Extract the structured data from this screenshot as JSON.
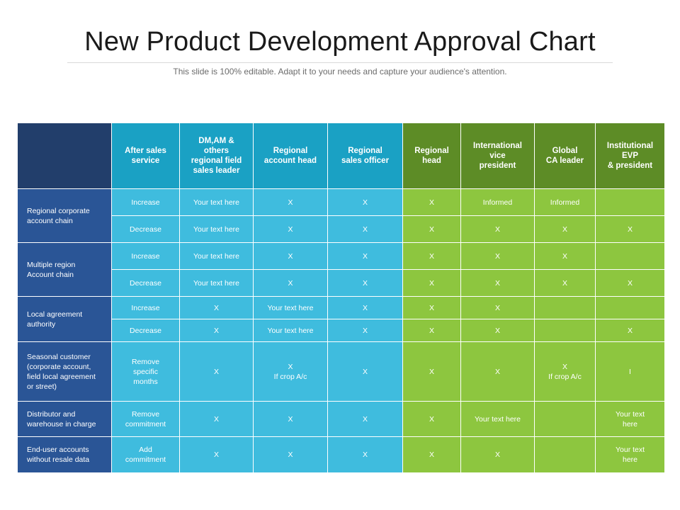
{
  "title": "New Product Development Approval Chart",
  "subtitle": "This slide is 100% editable. Adapt it to your needs and capture your audience's attention.",
  "headers": [
    "After sales\nservice",
    "DM,AM &\nothers\nregional field\nsales leader",
    "Regional\naccount head",
    "Regional\nsales officer",
    "Regional\nhead",
    "International\nvice\npresident",
    "Global\nCA leader",
    "Institutional\nEVP\n& president"
  ],
  "groups": [
    {
      "label": "Regional corporate\naccount chain",
      "rows": [
        [
          "Increase",
          "Your text here",
          "X",
          "X",
          "X",
          "Informed",
          "Informed",
          ""
        ],
        [
          "Decrease",
          "Your text here",
          "X",
          "X",
          "X",
          "X",
          "X",
          "X"
        ]
      ]
    },
    {
      "label": "Multiple region\nAccount chain",
      "rows": [
        [
          "Increase",
          "Your text here",
          "X",
          "X",
          "X",
          "X",
          "X",
          ""
        ],
        [
          "Decrease",
          "Your text here",
          "X",
          "X",
          "X",
          "X",
          "X",
          "X"
        ]
      ]
    },
    {
      "label": "Local agreement\nauthority",
      "rows": [
        [
          "Increase",
          "X",
          "Your text here",
          "X",
          "X",
          "X",
          "",
          ""
        ],
        [
          "Decrease",
          "X",
          "Your text here",
          "X",
          "X",
          "X",
          "",
          "X"
        ]
      ]
    },
    {
      "label": "Seasonal customer\n(corporate account,\nfield local agreement\nor street)",
      "rows": [
        [
          "Remove\nspecific\nmonths",
          "X",
          "X\nIf crop A/c",
          "X",
          "X",
          "X",
          "X\nIf crop A/c",
          "I"
        ]
      ]
    },
    {
      "label": "Distributor  and\nwarehouse in charge",
      "rows": [
        [
          "Remove\ncommitment",
          "X",
          "X",
          "X",
          "X",
          "Your text here",
          "",
          "Your text\nhere"
        ]
      ]
    },
    {
      "label": "End-user accounts\nwithout resale data",
      "rows": [
        [
          "Add\ncommitment",
          "X",
          "X",
          "X",
          "X",
          "X",
          "",
          "Your text\nhere"
        ]
      ]
    }
  ]
}
